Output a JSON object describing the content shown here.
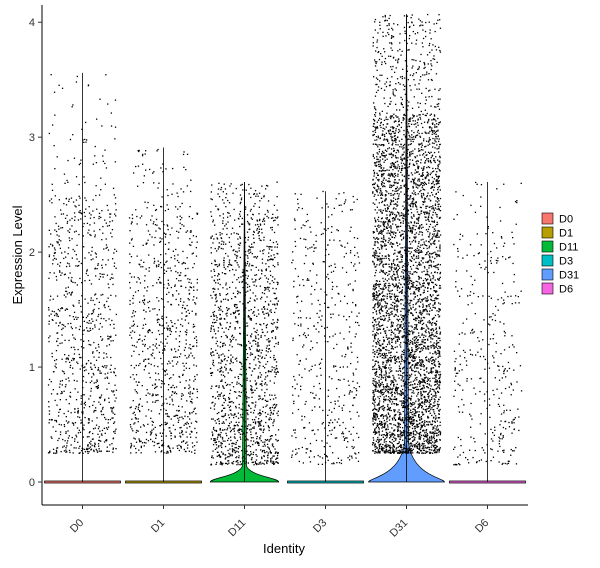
{
  "chart_data": {
    "type": "violin",
    "xlabel": "Identity",
    "ylabel": "Expression Level",
    "categories": [
      "D0",
      "D1",
      "D11",
      "D3",
      "D31",
      "D6"
    ],
    "ylim": [
      -0.2,
      4.15
    ],
    "yticks": [
      0,
      1,
      2,
      3,
      4
    ],
    "grid": false,
    "legend_position": "right",
    "legend": [
      {
        "label": "D0",
        "color": "#F8766D"
      },
      {
        "label": "D1",
        "color": "#B79F00"
      },
      {
        "label": "D11",
        "color": "#00BA38"
      },
      {
        "label": "D3",
        "color": "#00BFC4"
      },
      {
        "label": "D31",
        "color": "#619CFF"
      },
      {
        "label": "D6",
        "color": "#F564E3"
      }
    ],
    "series": [
      {
        "category": "D0",
        "color": "#F8766D",
        "max": 3.56,
        "n_points": 900,
        "low": 0.25,
        "high": 2.5,
        "violin_bulge": 0.0
      },
      {
        "category": "D1",
        "color": "#B79F00",
        "max": 2.91,
        "n_points": 850,
        "low": 0.25,
        "high": 2.4,
        "violin_bulge": 0.0
      },
      {
        "category": "D11",
        "color": "#00BA38",
        "max": 2.61,
        "n_points": 1500,
        "low": 0.15,
        "high": 2.3,
        "violin_bulge": 0.12
      },
      {
        "category": "D3",
        "color": "#00BFC4",
        "max": 2.53,
        "n_points": 450,
        "low": 0.15,
        "high": 2.3,
        "violin_bulge": 0.0
      },
      {
        "category": "D31",
        "color": "#619CFF",
        "max": 4.07,
        "n_points": 4500,
        "low": 0.25,
        "high": 3.2,
        "violin_bulge": 0.3
      },
      {
        "category": "D6",
        "color": "#F564E3",
        "max": 2.61,
        "n_points": 350,
        "low": 0.15,
        "high": 2.2,
        "violin_bulge": 0.0
      }
    ]
  }
}
